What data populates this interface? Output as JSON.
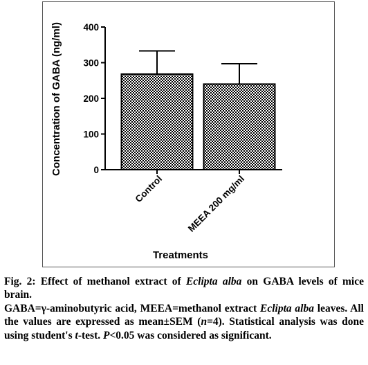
{
  "chart_data": {
    "type": "bar",
    "categories": [
      "Control",
      "MEEA 200 mg/ml"
    ],
    "values": [
      268,
      240
    ],
    "errors": [
      65,
      57
    ],
    "ylabel": "Concentration of GABA (ng/ml)",
    "xlabel": "Treatments",
    "ylim": [
      0,
      400
    ],
    "yticks": [
      0,
      100,
      200,
      300,
      400
    ],
    "ytick_labels": [
      "0",
      "100",
      "200",
      "300",
      "400"
    ],
    "grid": false,
    "bar_fill": "checkered"
  },
  "caption": {
    "title_prefix": "Fig. 2: Effect of methanol extract of ",
    "title_italic": "Eclipta alba",
    "title_suffix": " on GABA levels of mice brain.",
    "body": [
      {
        "text": "GABA=γ-aminobutyric acid, MEEA=methanol extract ",
        "italic": false
      },
      {
        "text": "Eclipta alba",
        "italic": true
      },
      {
        "text": " leaves. All the values are expressed as mean±SEM (",
        "italic": false
      },
      {
        "text": "n",
        "italic": true
      },
      {
        "text": "=4). Statistical analysis was done using student's ",
        "italic": false
      },
      {
        "text": "t",
        "italic": true
      },
      {
        "text": "-test. ",
        "italic": false
      },
      {
        "text": "P",
        "italic": true
      },
      {
        "text": "<0.05 was considered as significant.",
        "italic": false
      }
    ]
  }
}
